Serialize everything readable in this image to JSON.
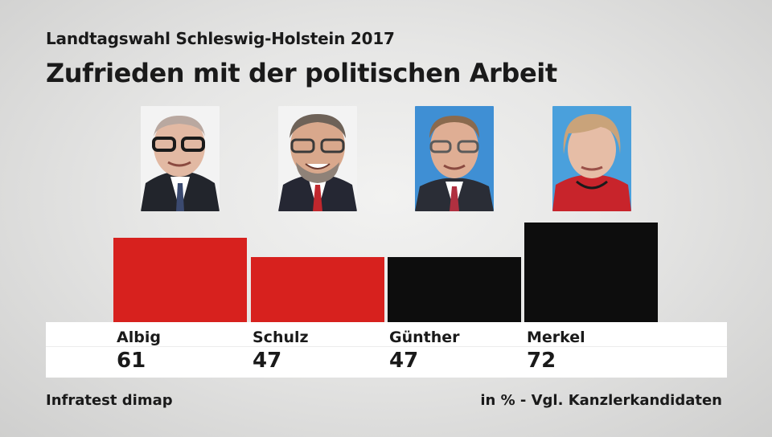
{
  "header": {
    "supertitle": "Landtagswahl Schleswig-Holstein 2017",
    "title": "Zufrieden mit der politischen Arbeit"
  },
  "footer": {
    "source": "Infratest dimap",
    "note": "in % - Vgl. Kanzlerkandidaten"
  },
  "colors": {
    "spd": "#d7211e",
    "cdu": "#0d0d0d"
  },
  "chart_data": {
    "type": "bar",
    "title": "Zufrieden mit der politischen Arbeit",
    "categories": [
      "Albig",
      "Schulz",
      "Günther",
      "Merkel"
    ],
    "values": [
      61,
      47,
      47,
      72
    ],
    "value_labels": [
      "61",
      "47",
      "47",
      "72"
    ],
    "bar_colors": [
      "#d7211e",
      "#d7211e",
      "#0d0d0d",
      "#0d0d0d"
    ],
    "unit": "%",
    "ylim": [
      0,
      100
    ],
    "xlabel": "",
    "ylabel": ""
  }
}
